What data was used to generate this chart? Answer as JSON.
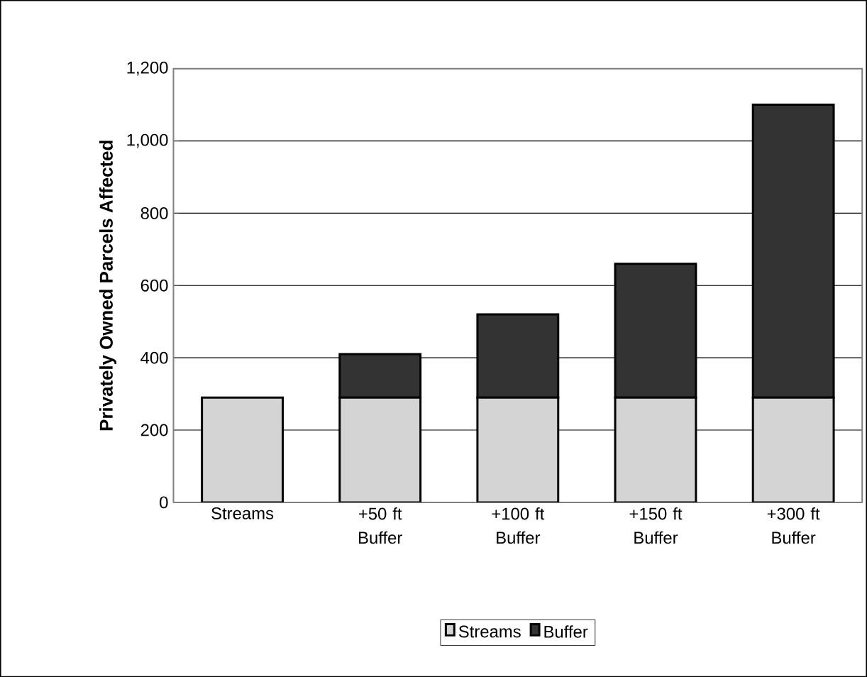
{
  "chart_data": {
    "type": "bar",
    "stacked": true,
    "ylabel": "Privately Owned Parcels Affected",
    "categories": [
      "Streams",
      "+50 ft Buffer",
      "+100 ft Buffer",
      "+150 ft Buffer",
      "+300 ft Buffer"
    ],
    "series": [
      {
        "name": "Streams",
        "color": "#d4d4d4",
        "values": [
          290,
          290,
          290,
          290,
          290
        ]
      },
      {
        "name": "Buffer",
        "color": "#333333",
        "values": [
          null,
          120,
          230,
          370,
          810
        ]
      }
    ],
    "ylim": [
      0,
      1200
    ],
    "yticks": [
      0,
      {
        "value": 200,
        "label": "200"
      },
      {
        "value": 400,
        "label": "400"
      },
      {
        "value": 600,
        "label": "600"
      },
      {
        "value": 800,
        "label": "800"
      },
      {
        "value": 1000,
        "label": "1,000"
      },
      {
        "value": 1200,
        "label": "1,200"
      }
    ],
    "grid": "y",
    "legend": "bottom"
  }
}
